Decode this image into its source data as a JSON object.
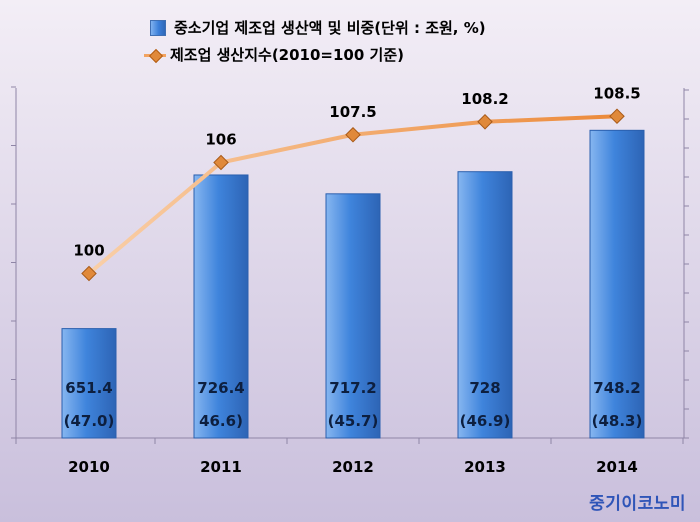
{
  "legend": {
    "bar_label": "중소기업 제조업 생산액 및 비중(단위 : 조원, %)",
    "line_label": "제조업 생산지수(2010=100 기준)"
  },
  "brand": "중기이코노미",
  "colors": {
    "bar_top": "#7fb1ef",
    "bar_mid": "#3b7fd9",
    "bar_dark": "#2f68b8",
    "line": "#ec8a3a",
    "marker": "#e0893a",
    "brand": "#2f55b8"
  },
  "chart_data": {
    "type": "bar+line",
    "categories": [
      "2010",
      "2011",
      "2012",
      "2013",
      "2014"
    ],
    "bars": {
      "name": "중소기업 제조업 생산액 및 비중(단위 : 조원, %)",
      "values": [
        651.4,
        726.4,
        717.2,
        728,
        748.2
      ],
      "value_labels": [
        "651.4",
        "726.4",
        "717.2",
        "728",
        "748.2"
      ],
      "share_labels": [
        "(47.0)",
        "46.6)",
        "(45.7)",
        "(46.9)",
        "(48.3)"
      ]
    },
    "line": {
      "name": "제조업 생산지수(2010=100 기준)",
      "values": [
        100,
        106,
        107.5,
        108.2,
        108.5
      ],
      "value_labels": [
        "100",
        "106",
        "107.5",
        "108.2",
        "108.5"
      ]
    },
    "grid": false,
    "legend_position": "top"
  }
}
